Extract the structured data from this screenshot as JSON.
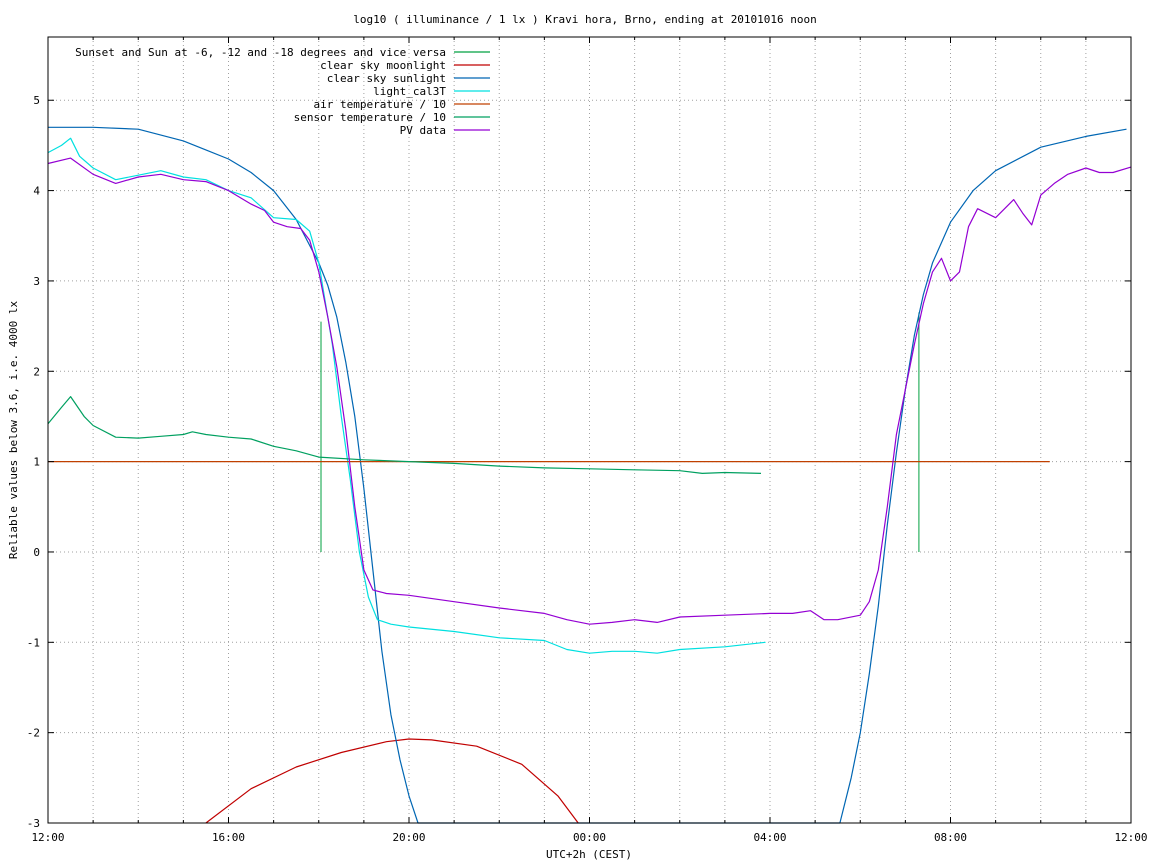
{
  "chart_data": {
    "type": "line",
    "title": "log10 ( illuminance / 1 lx ) Kravi hora, Brno, ending at 20101016 noon",
    "xlabel": "UTC+2h (CEST)",
    "ylabel": "Reliable values below 3.6, i.e. 4000 lx",
    "x_unit": "hours since 12:00 (day before)",
    "xlim": [
      0,
      24
    ],
    "ylim": [
      -3,
      5.7
    ],
    "x_ticks": [
      {
        "value": 0,
        "label": "12:00"
      },
      {
        "value": 4,
        "label": "16:00"
      },
      {
        "value": 8,
        "label": "20:00"
      },
      {
        "value": 12,
        "label": "00:00"
      },
      {
        "value": 16,
        "label": "04:00"
      },
      {
        "value": 20,
        "label": "08:00"
      },
      {
        "value": 24,
        "label": "12:00"
      }
    ],
    "y_ticks": [
      {
        "value": -3,
        "label": "-3"
      },
      {
        "value": -2,
        "label": "-2"
      },
      {
        "value": -1,
        "label": "-1"
      },
      {
        "value": 0,
        "label": "0"
      },
      {
        "value": 1,
        "label": "1"
      },
      {
        "value": 2,
        "label": "2"
      },
      {
        "value": 3,
        "label": "3"
      },
      {
        "value": 4,
        "label": "4"
      },
      {
        "value": 5,
        "label": "5"
      }
    ],
    "grid": true,
    "legend_position": "top-left",
    "series": [
      {
        "name": "Sunset and Sun at -6, -12 and -18 degrees and vice versa",
        "color": "#00a040",
        "style": "impulses",
        "points": [
          [
            6.05,
            2.55
          ],
          [
            7.25,
            0.0
          ],
          [
            7.85,
            0.0
          ],
          [
            17.55,
            0.0
          ],
          [
            18.15,
            0.0
          ],
          [
            19.3,
            2.65
          ]
        ]
      },
      {
        "name": "clear sky moonlight",
        "color": "#c00000",
        "points": [
          [
            3.5,
            -3.0
          ],
          [
            4.5,
            -2.62
          ],
          [
            5.5,
            -2.38
          ],
          [
            6.5,
            -2.22
          ],
          [
            7.5,
            -2.1
          ],
          [
            8.0,
            -2.07
          ],
          [
            8.5,
            -2.08
          ],
          [
            9.5,
            -2.15
          ],
          [
            10.5,
            -2.35
          ],
          [
            11.3,
            -2.7
          ],
          [
            11.75,
            -3.0
          ]
        ]
      },
      {
        "name": "clear sky sunlight",
        "color": "#0066b3",
        "points": [
          [
            0.0,
            4.7
          ],
          [
            1.0,
            4.7
          ],
          [
            2.0,
            4.68
          ],
          [
            3.0,
            4.55
          ],
          [
            3.5,
            4.45
          ],
          [
            4.0,
            4.35
          ],
          [
            4.5,
            4.2
          ],
          [
            5.0,
            4.0
          ],
          [
            5.5,
            3.68
          ],
          [
            6.0,
            3.2
          ],
          [
            6.2,
            2.95
          ],
          [
            6.4,
            2.6
          ],
          [
            6.6,
            2.1
          ],
          [
            6.8,
            1.5
          ],
          [
            7.0,
            0.7
          ],
          [
            7.2,
            -0.2
          ],
          [
            7.4,
            -1.1
          ],
          [
            7.6,
            -1.8
          ],
          [
            7.8,
            -2.3
          ],
          [
            8.0,
            -2.7
          ],
          [
            8.2,
            -3.0
          ],
          [
            17.55,
            -3.0
          ],
          [
            17.8,
            -2.5
          ],
          [
            18.0,
            -2.0
          ],
          [
            18.2,
            -1.35
          ],
          [
            18.4,
            -0.6
          ],
          [
            18.6,
            0.3
          ],
          [
            18.8,
            1.1
          ],
          [
            19.0,
            1.8
          ],
          [
            19.2,
            2.4
          ],
          [
            19.4,
            2.85
          ],
          [
            19.6,
            3.2
          ],
          [
            20.0,
            3.65
          ],
          [
            20.5,
            4.0
          ],
          [
            21.0,
            4.22
          ],
          [
            22.0,
            4.48
          ],
          [
            23.0,
            4.6
          ],
          [
            23.9,
            4.68
          ]
        ]
      },
      {
        "name": "light_cal3T",
        "color": "#00e0e0",
        "points": [
          [
            0.0,
            4.42
          ],
          [
            0.3,
            4.5
          ],
          [
            0.5,
            4.58
          ],
          [
            0.7,
            4.38
          ],
          [
            1.0,
            4.25
          ],
          [
            1.5,
            4.12
          ],
          [
            2.0,
            4.17
          ],
          [
            2.5,
            4.22
          ],
          [
            3.0,
            4.15
          ],
          [
            3.5,
            4.12
          ],
          [
            4.0,
            4.0
          ],
          [
            4.5,
            3.92
          ],
          [
            5.0,
            3.7
          ],
          [
            5.5,
            3.68
          ],
          [
            5.8,
            3.55
          ],
          [
            6.0,
            3.2
          ],
          [
            6.3,
            2.3
          ],
          [
            6.5,
            1.5
          ],
          [
            6.7,
            0.8
          ],
          [
            6.9,
            0.0
          ],
          [
            7.1,
            -0.5
          ],
          [
            7.3,
            -0.75
          ],
          [
            7.6,
            -0.8
          ],
          [
            8.0,
            -0.83
          ],
          [
            9.0,
            -0.88
          ],
          [
            10.0,
            -0.95
          ],
          [
            11.0,
            -0.98
          ],
          [
            11.5,
            -1.08
          ],
          [
            12.0,
            -1.12
          ],
          [
            12.5,
            -1.1
          ],
          [
            13.0,
            -1.1
          ],
          [
            13.5,
            -1.12
          ],
          [
            14.0,
            -1.08
          ],
          [
            15.0,
            -1.05
          ],
          [
            15.9,
            -1.0
          ]
        ]
      },
      {
        "name": "air temperature / 10",
        "color": "#c04000",
        "points": [
          [
            0.0,
            1.0
          ],
          [
            22.2,
            1.0
          ]
        ]
      },
      {
        "name": "sensor temperature / 10",
        "color": "#00a060",
        "points": [
          [
            0.0,
            1.42
          ],
          [
            0.3,
            1.6
          ],
          [
            0.5,
            1.72
          ],
          [
            0.8,
            1.5
          ],
          [
            1.0,
            1.4
          ],
          [
            1.5,
            1.27
          ],
          [
            2.0,
            1.26
          ],
          [
            2.5,
            1.28
          ],
          [
            3.0,
            1.3
          ],
          [
            3.2,
            1.33
          ],
          [
            3.5,
            1.3
          ],
          [
            4.0,
            1.27
          ],
          [
            4.5,
            1.25
          ],
          [
            5.0,
            1.17
          ],
          [
            5.5,
            1.12
          ],
          [
            6.0,
            1.05
          ],
          [
            7.0,
            1.02
          ],
          [
            8.0,
            1.0
          ],
          [
            9.0,
            0.98
          ],
          [
            10.0,
            0.95
          ],
          [
            11.0,
            0.93
          ],
          [
            12.0,
            0.92
          ],
          [
            13.0,
            0.91
          ],
          [
            14.0,
            0.9
          ],
          [
            14.5,
            0.87
          ],
          [
            15.0,
            0.88
          ],
          [
            15.8,
            0.87
          ]
        ]
      },
      {
        "name": "PV data",
        "color": "#9400d3",
        "points": [
          [
            0.0,
            4.3
          ],
          [
            0.5,
            4.36
          ],
          [
            1.0,
            4.18
          ],
          [
            1.5,
            4.08
          ],
          [
            2.0,
            4.15
          ],
          [
            2.5,
            4.18
          ],
          [
            3.0,
            4.12
          ],
          [
            3.5,
            4.1
          ],
          [
            4.0,
            4.0
          ],
          [
            4.5,
            3.85
          ],
          [
            4.8,
            3.78
          ],
          [
            5.0,
            3.65
          ],
          [
            5.3,
            3.6
          ],
          [
            5.6,
            3.58
          ],
          [
            5.8,
            3.45
          ],
          [
            6.0,
            3.1
          ],
          [
            6.2,
            2.6
          ],
          [
            6.4,
            2.05
          ],
          [
            6.6,
            1.35
          ],
          [
            6.8,
            0.5
          ],
          [
            7.0,
            -0.2
          ],
          [
            7.2,
            -0.42
          ],
          [
            7.5,
            -0.46
          ],
          [
            8.0,
            -0.48
          ],
          [
            9.0,
            -0.55
          ],
          [
            10.0,
            -0.62
          ],
          [
            11.0,
            -0.68
          ],
          [
            11.5,
            -0.75
          ],
          [
            12.0,
            -0.8
          ],
          [
            12.5,
            -0.78
          ],
          [
            13.0,
            -0.75
          ],
          [
            13.5,
            -0.78
          ],
          [
            14.0,
            -0.72
          ],
          [
            15.0,
            -0.7
          ],
          [
            16.0,
            -0.68
          ],
          [
            16.5,
            -0.68
          ],
          [
            16.9,
            -0.65
          ],
          [
            17.2,
            -0.75
          ],
          [
            17.5,
            -0.75
          ],
          [
            18.0,
            -0.7
          ],
          [
            18.2,
            -0.55
          ],
          [
            18.4,
            -0.2
          ],
          [
            18.6,
            0.5
          ],
          [
            18.8,
            1.3
          ],
          [
            19.0,
            1.8
          ],
          [
            19.2,
            2.3
          ],
          [
            19.4,
            2.75
          ],
          [
            19.6,
            3.1
          ],
          [
            19.8,
            3.25
          ],
          [
            20.0,
            3.0
          ],
          [
            20.2,
            3.1
          ],
          [
            20.4,
            3.6
          ],
          [
            20.6,
            3.8
          ],
          [
            20.8,
            3.75
          ],
          [
            21.0,
            3.7
          ],
          [
            21.2,
            3.8
          ],
          [
            21.4,
            3.9
          ],
          [
            21.6,
            3.75
          ],
          [
            21.8,
            3.62
          ],
          [
            22.0,
            3.95
          ],
          [
            22.3,
            4.08
          ],
          [
            22.6,
            4.18
          ],
          [
            23.0,
            4.25
          ],
          [
            23.3,
            4.2
          ],
          [
            23.6,
            4.2
          ],
          [
            24.0,
            4.26
          ]
        ]
      }
    ]
  }
}
